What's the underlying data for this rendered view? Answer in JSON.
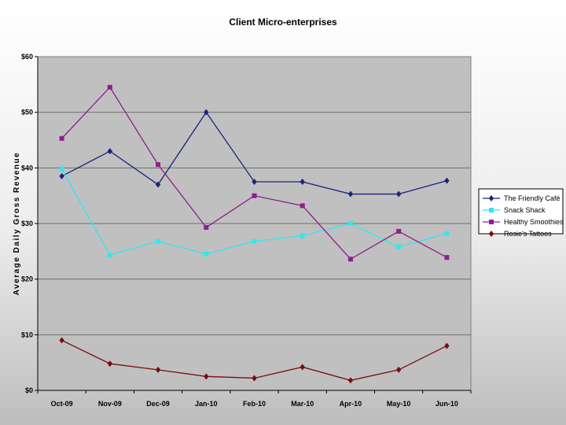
{
  "chart_data": {
    "type": "line",
    "title": "Client Micro-enterprises",
    "xlabel": "",
    "ylabel": "Average Daily Gross Revenue",
    "categories": [
      "Oct-09",
      "Nov-09",
      "Dec-09",
      "Jan-10",
      "Feb-10",
      "Mar-10",
      "Apr-10",
      "May-10",
      "Jun-10"
    ],
    "ylim": [
      0,
      60
    ],
    "yticks": [
      0,
      10,
      20,
      30,
      40,
      50,
      60
    ],
    "ytick_labels": [
      "$0",
      "$10",
      "$20",
      "$30",
      "$40",
      "$50",
      "$60"
    ],
    "grid": true,
    "legend_position": "right",
    "series": [
      {
        "name": "The Friendly Café",
        "color": "#1a237e",
        "marker": "diamond",
        "values": [
          38.5,
          43.0,
          37.0,
          50.0,
          37.5,
          37.5,
          35.3,
          35.3,
          37.7
        ]
      },
      {
        "name": "Snack Shack",
        "color": "#33e6f0",
        "marker": "square",
        "values": [
          39.8,
          24.3,
          26.8,
          24.5,
          26.8,
          27.8,
          30.0,
          25.8,
          28.2
        ]
      },
      {
        "name": "Healthy Smoothies",
        "color": "#8e1f8e",
        "marker": "square",
        "values": [
          45.3,
          54.5,
          40.6,
          29.3,
          35.0,
          33.2,
          23.6,
          28.6,
          23.9
        ]
      },
      {
        "name": "Rosie's Tattoos",
        "color": "#7a0c0c",
        "marker": "diamond",
        "values": [
          9.0,
          4.8,
          3.7,
          2.5,
          2.2,
          4.2,
          1.8,
          3.7,
          8.0
        ]
      }
    ]
  }
}
